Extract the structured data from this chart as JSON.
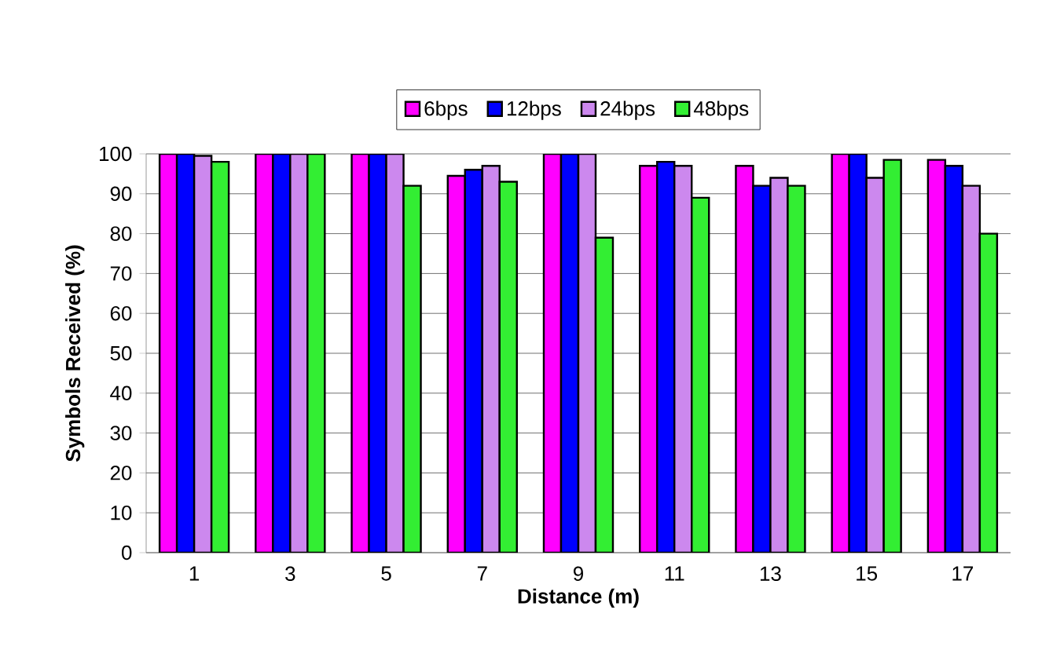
{
  "chart_data": {
    "type": "bar",
    "xlabel": "Distance (m)",
    "ylabel": "Symbols Received (%)",
    "categories": [
      "1",
      "3",
      "5",
      "7",
      "9",
      "11",
      "13",
      "15",
      "17"
    ],
    "series": [
      {
        "name": "6bps",
        "color": "#ff00ff",
        "values": [
          100,
          100,
          100,
          94.5,
          100,
          97,
          97,
          100,
          98.5
        ]
      },
      {
        "name": "12bps",
        "color": "#0000ff",
        "values": [
          100,
          100,
          100,
          96,
          100,
          98,
          92,
          100,
          97
        ]
      },
      {
        "name": "24bps",
        "color": "#cc88ee",
        "values": [
          99.5,
          100,
          100,
          97,
          100,
          97,
          94,
          94,
          92
        ]
      },
      {
        "name": "48bps",
        "color": "#33ee33",
        "values": [
          98,
          100,
          92,
          93,
          79,
          89,
          92,
          98.5,
          80
        ]
      }
    ],
    "ylim": [
      0,
      100
    ],
    "yticks": [
      0,
      10,
      20,
      30,
      40,
      50,
      60,
      70,
      80,
      90,
      100
    ],
    "grid": "y",
    "legend": "top"
  }
}
